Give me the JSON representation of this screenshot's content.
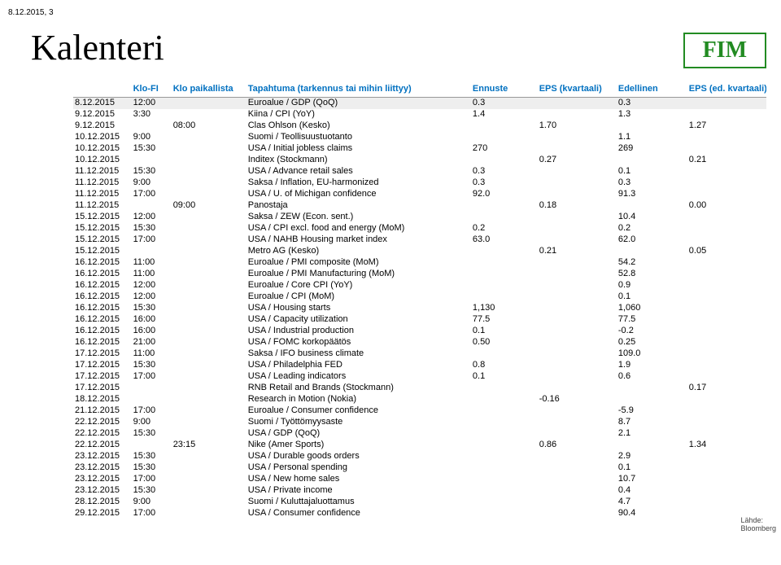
{
  "doc_date": "8.12.2015, 3",
  "title": "Kalenteri",
  "logo_text": "FIM",
  "logo_color": "#228b22",
  "header_color": "#0070c0",
  "highlight_color": "#eeeeee",
  "source_label": "Lähde:",
  "source_value": "Bloomberg",
  "columns": {
    "klofi": "Klo-FI",
    "klopaik": "Klo paikallista",
    "event": "Tapahtuma (tarkennus tai mihin liittyy)",
    "ennuste": "Ennuste",
    "eps": "EPS (kvartaali)",
    "edellinen": "Edellinen",
    "epsed": "EPS (ed. kvartaali)"
  },
  "rows": [
    {
      "date": "8.12.2015",
      "klofi": "12:00",
      "klopaik": "",
      "event": "Euroalue / GDP (QoQ)",
      "ennuste": "0.3",
      "eps": "",
      "edel": "0.3",
      "epsed": "",
      "hl": true
    },
    {
      "date": "9.12.2015",
      "klofi": "3:30",
      "klopaik": "",
      "event": "Kiina / CPI (YoY)",
      "ennuste": "1.4",
      "eps": "",
      "edel": "1.3",
      "epsed": ""
    },
    {
      "date": "9.12.2015",
      "klofi": "",
      "klopaik": "08:00",
      "event": "Clas Ohlson   (Kesko)",
      "ennuste": "",
      "eps": "1.70",
      "edel": "",
      "epsed": "1.27"
    },
    {
      "date": "10.12.2015",
      "klofi": "9:00",
      "klopaik": "",
      "event": "Suomi / Teollisuustuotanto",
      "ennuste": "",
      "eps": "",
      "edel": "1.1",
      "epsed": ""
    },
    {
      "date": "10.12.2015",
      "klofi": "15:30",
      "klopaik": "",
      "event": "USA / Initial jobless claims",
      "ennuste": "270",
      "eps": "",
      "edel": "269",
      "epsed": ""
    },
    {
      "date": "10.12.2015",
      "klofi": "",
      "klopaik": "",
      "event": "Inditex   (Stockmann)",
      "ennuste": "",
      "eps": "0.27",
      "edel": "",
      "epsed": "0.21"
    },
    {
      "date": "11.12.2015",
      "klofi": "15:30",
      "klopaik": "",
      "event": "USA / Advance retail sales",
      "ennuste": "0.3",
      "eps": "",
      "edel": "0.1",
      "epsed": ""
    },
    {
      "date": "11.12.2015",
      "klofi": "9:00",
      "klopaik": "",
      "event": "Saksa / Inflation, EU-harmonized",
      "ennuste": "0.3",
      "eps": "",
      "edel": "0.3",
      "epsed": ""
    },
    {
      "date": "11.12.2015",
      "klofi": "17:00",
      "klopaik": "",
      "event": "USA / U. of Michigan confidence",
      "ennuste": "92.0",
      "eps": "",
      "edel": "91.3",
      "epsed": ""
    },
    {
      "date": "11.12.2015",
      "klofi": "",
      "klopaik": "09:00",
      "event": "Panostaja",
      "ennuste": "",
      "eps": "0.18",
      "edel": "",
      "epsed": "0.00"
    },
    {
      "date": "15.12.2015",
      "klofi": "12:00",
      "klopaik": "",
      "event": "Saksa / ZEW (Econ. sent.)",
      "ennuste": "",
      "eps": "",
      "edel": "10.4",
      "epsed": ""
    },
    {
      "date": "15.12.2015",
      "klofi": "15:30",
      "klopaik": "",
      "event": "USA / CPI excl. food and energy (MoM)",
      "ennuste": "0.2",
      "eps": "",
      "edel": "0.2",
      "epsed": ""
    },
    {
      "date": "15.12.2015",
      "klofi": "17:00",
      "klopaik": "",
      "event": "USA / NAHB Housing market index",
      "ennuste": "63.0",
      "eps": "",
      "edel": "62.0",
      "epsed": ""
    },
    {
      "date": "15.12.2015",
      "klofi": "",
      "klopaik": "",
      "event": "Metro AG   (Kesko)",
      "ennuste": "",
      "eps": "0.21",
      "edel": "",
      "epsed": "0.05"
    },
    {
      "date": "16.12.2015",
      "klofi": "11:00",
      "klopaik": "",
      "event": "Euroalue / PMI composite (MoM)",
      "ennuste": "",
      "eps": "",
      "edel": "54.2",
      "epsed": ""
    },
    {
      "date": "16.12.2015",
      "klofi": "11:00",
      "klopaik": "",
      "event": "Euroalue / PMI Manufacturing (MoM)",
      "ennuste": "",
      "eps": "",
      "edel": "52.8",
      "epsed": ""
    },
    {
      "date": "16.12.2015",
      "klofi": "12:00",
      "klopaik": "",
      "event": "Euroalue / Core CPI (YoY)",
      "ennuste": "",
      "eps": "",
      "edel": "0.9",
      "epsed": ""
    },
    {
      "date": "16.12.2015",
      "klofi": "12:00",
      "klopaik": "",
      "event": "Euroalue / CPI (MoM)",
      "ennuste": "",
      "eps": "",
      "edel": "0.1",
      "epsed": ""
    },
    {
      "date": "16.12.2015",
      "klofi": "15:30",
      "klopaik": "",
      "event": "USA / Housing starts",
      "ennuste": "1,130",
      "eps": "",
      "edel": "1,060",
      "epsed": ""
    },
    {
      "date": "16.12.2015",
      "klofi": "16:00",
      "klopaik": "",
      "event": "USA / Capacity utilization",
      "ennuste": "77.5",
      "eps": "",
      "edel": "77.5",
      "epsed": ""
    },
    {
      "date": "16.12.2015",
      "klofi": "16:00",
      "klopaik": "",
      "event": "USA / Industrial production",
      "ennuste": "0.1",
      "eps": "",
      "edel": "-0.2",
      "epsed": ""
    },
    {
      "date": "16.12.2015",
      "klofi": "21:00",
      "klopaik": "",
      "event": "USA / FOMC korkopäätös",
      "ennuste": "0.50",
      "eps": "",
      "edel": "0.25",
      "epsed": ""
    },
    {
      "date": "17.12.2015",
      "klofi": "11:00",
      "klopaik": "",
      "event": "Saksa / IFO business climate",
      "ennuste": "",
      "eps": "",
      "edel": "109.0",
      "epsed": ""
    },
    {
      "date": "17.12.2015",
      "klofi": "15:30",
      "klopaik": "",
      "event": "USA / Philadelphia FED",
      "ennuste": "0.8",
      "eps": "",
      "edel": "1.9",
      "epsed": ""
    },
    {
      "date": "17.12.2015",
      "klofi": "17:00",
      "klopaik": "",
      "event": "USA / Leading indicators",
      "ennuste": "0.1",
      "eps": "",
      "edel": "0.6",
      "epsed": ""
    },
    {
      "date": "17.12.2015",
      "klofi": "",
      "klopaik": "",
      "event": "RNB Retail and Brands   (Stockmann)",
      "ennuste": "",
      "eps": "",
      "edel": "",
      "epsed": "0.17"
    },
    {
      "date": "18.12.2015",
      "klofi": "",
      "klopaik": "",
      "event": "Research in Motion (Nokia)",
      "ennuste": "",
      "eps": "-0.16",
      "edel": "",
      "epsed": ""
    },
    {
      "date": "21.12.2015",
      "klofi": "17:00",
      "klopaik": "",
      "event": "Euroalue / Consumer confidence",
      "ennuste": "",
      "eps": "",
      "edel": "-5.9",
      "epsed": ""
    },
    {
      "date": "22.12.2015",
      "klofi": "9:00",
      "klopaik": "",
      "event": "Suomi / Työttömyysaste",
      "ennuste": "",
      "eps": "",
      "edel": "8.7",
      "epsed": ""
    },
    {
      "date": "22.12.2015",
      "klofi": "15:30",
      "klopaik": "",
      "event": "USA / GDP (QoQ)",
      "ennuste": "",
      "eps": "",
      "edel": "2.1",
      "epsed": ""
    },
    {
      "date": "22.12.2015",
      "klofi": "",
      "klopaik": "23:15",
      "event": "Nike   (Amer Sports)",
      "ennuste": "",
      "eps": "0.86",
      "edel": "",
      "epsed": "1.34"
    },
    {
      "date": "23.12.2015",
      "klofi": "15:30",
      "klopaik": "",
      "event": "USA / Durable goods orders",
      "ennuste": "",
      "eps": "",
      "edel": "2.9",
      "epsed": ""
    },
    {
      "date": "23.12.2015",
      "klofi": "15:30",
      "klopaik": "",
      "event": "USA / Personal spending",
      "ennuste": "",
      "eps": "",
      "edel": "0.1",
      "epsed": ""
    },
    {
      "date": "23.12.2015",
      "klofi": "17:00",
      "klopaik": "",
      "event": "USA / New home sales",
      "ennuste": "",
      "eps": "",
      "edel": "10.7",
      "epsed": ""
    },
    {
      "date": "23.12.2015",
      "klofi": "15:30",
      "klopaik": "",
      "event": "USA / Private income",
      "ennuste": "",
      "eps": "",
      "edel": "0.4",
      "epsed": ""
    },
    {
      "date": "28.12.2015",
      "klofi": "9:00",
      "klopaik": "",
      "event": "Suomi / Kuluttajaluottamus",
      "ennuste": "",
      "eps": "",
      "edel": "4.7",
      "epsed": ""
    },
    {
      "date": "29.12.2015",
      "klofi": "17:00",
      "klopaik": "",
      "event": "USA / Consumer confidence",
      "ennuste": "",
      "eps": "",
      "edel": "90.4",
      "epsed": ""
    }
  ]
}
